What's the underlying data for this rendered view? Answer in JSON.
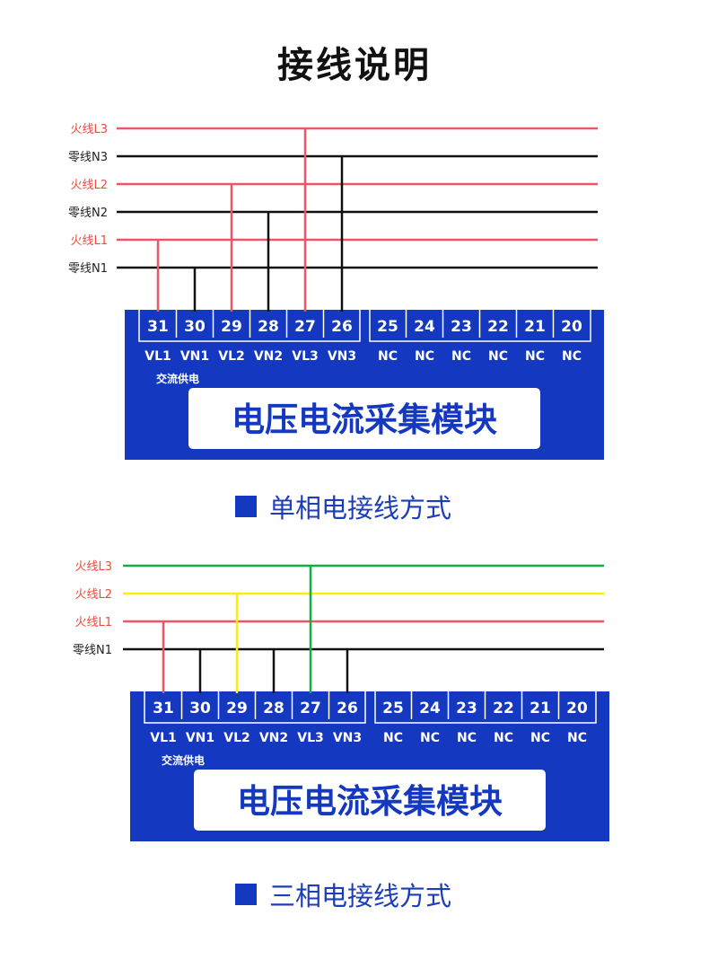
{
  "title": "接线说明",
  "colors": {
    "module": "#1438c0",
    "red": "#ef5468",
    "black": "#111111",
    "yellow": "#ffee00",
    "green": "#10b040",
    "label_red": "#f04a3a"
  },
  "diagrams": [
    {
      "caption": "单相电接线方式",
      "wires": [
        {
          "label": "火线L3",
          "color": "red",
          "terminal": "27"
        },
        {
          "label": "零线N3",
          "color": "black",
          "terminal": "26"
        },
        {
          "label": "火线L2",
          "color": "red",
          "terminal": "29"
        },
        {
          "label": "零线N2",
          "color": "black",
          "terminal": "28"
        },
        {
          "label": "火线L1",
          "color": "red",
          "terminal": "31"
        },
        {
          "label": "零线N1",
          "color": "black",
          "terminal": "30"
        }
      ]
    },
    {
      "caption": "三相电接线方式",
      "wires": [
        {
          "label": "火线L3",
          "color": "green",
          "terminal": "27"
        },
        {
          "label": "火线L2",
          "color": "yellow",
          "terminal": "29"
        },
        {
          "label": "火线L1",
          "color": "red",
          "terminal": "31"
        },
        {
          "label": "零线N1",
          "color": "black",
          "terminal": "30,28,26"
        }
      ]
    }
  ],
  "module": {
    "name": "电压电流采集模块",
    "supply_label": "交流供电",
    "terminals": [
      {
        "num": "31",
        "label": "VL1"
      },
      {
        "num": "30",
        "label": "VN1"
      },
      {
        "num": "29",
        "label": "VL2"
      },
      {
        "num": "28",
        "label": "VN2"
      },
      {
        "num": "27",
        "label": "VL3"
      },
      {
        "num": "26",
        "label": "VN3"
      },
      {
        "num": "25",
        "label": "NC"
      },
      {
        "num": "24",
        "label": "NC"
      },
      {
        "num": "23",
        "label": "NC"
      },
      {
        "num": "22",
        "label": "NC"
      },
      {
        "num": "21",
        "label": "NC"
      },
      {
        "num": "20",
        "label": "NC"
      }
    ]
  }
}
